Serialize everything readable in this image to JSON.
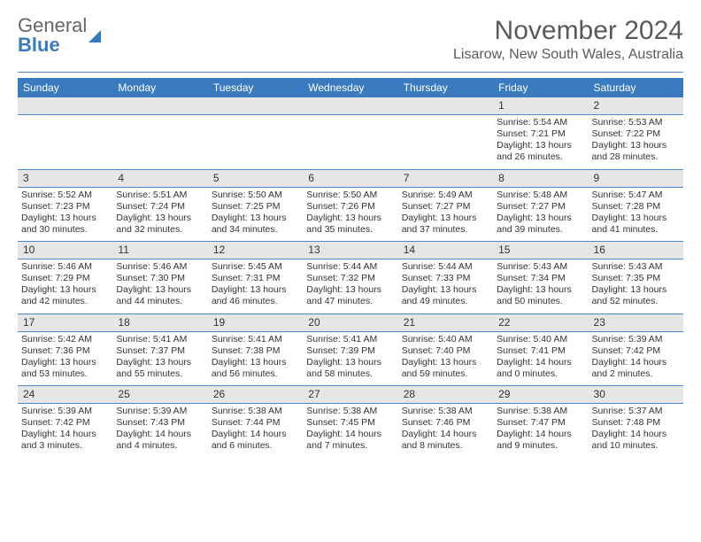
{
  "brand": {
    "line1": "General",
    "line2": "Blue",
    "line1_color": "#666666",
    "line2_color": "#3a7bbf"
  },
  "title": "November 2024",
  "location": "Lisarow, New South Wales, Australia",
  "colors": {
    "header_bg": "#3a7bbf",
    "header_text": "#ffffff",
    "daynum_bg": "#e6e6e6",
    "rule": "#4a8ac9",
    "body_text": "#333333"
  },
  "weekdays": [
    "Sunday",
    "Monday",
    "Tuesday",
    "Wednesday",
    "Thursday",
    "Friday",
    "Saturday"
  ],
  "weeks": [
    [
      null,
      null,
      null,
      null,
      null,
      {
        "n": "1",
        "sr": "5:54 AM",
        "ss": "7:21 PM",
        "dl": "13 hours and 26 minutes."
      },
      {
        "n": "2",
        "sr": "5:53 AM",
        "ss": "7:22 PM",
        "dl": "13 hours and 28 minutes."
      }
    ],
    [
      {
        "n": "3",
        "sr": "5:52 AM",
        "ss": "7:23 PM",
        "dl": "13 hours and 30 minutes."
      },
      {
        "n": "4",
        "sr": "5:51 AM",
        "ss": "7:24 PM",
        "dl": "13 hours and 32 minutes."
      },
      {
        "n": "5",
        "sr": "5:50 AM",
        "ss": "7:25 PM",
        "dl": "13 hours and 34 minutes."
      },
      {
        "n": "6",
        "sr": "5:50 AM",
        "ss": "7:26 PM",
        "dl": "13 hours and 35 minutes."
      },
      {
        "n": "7",
        "sr": "5:49 AM",
        "ss": "7:27 PM",
        "dl": "13 hours and 37 minutes."
      },
      {
        "n": "8",
        "sr": "5:48 AM",
        "ss": "7:27 PM",
        "dl": "13 hours and 39 minutes."
      },
      {
        "n": "9",
        "sr": "5:47 AM",
        "ss": "7:28 PM",
        "dl": "13 hours and 41 minutes."
      }
    ],
    [
      {
        "n": "10",
        "sr": "5:46 AM",
        "ss": "7:29 PM",
        "dl": "13 hours and 42 minutes."
      },
      {
        "n": "11",
        "sr": "5:46 AM",
        "ss": "7:30 PM",
        "dl": "13 hours and 44 minutes."
      },
      {
        "n": "12",
        "sr": "5:45 AM",
        "ss": "7:31 PM",
        "dl": "13 hours and 46 minutes."
      },
      {
        "n": "13",
        "sr": "5:44 AM",
        "ss": "7:32 PM",
        "dl": "13 hours and 47 minutes."
      },
      {
        "n": "14",
        "sr": "5:44 AM",
        "ss": "7:33 PM",
        "dl": "13 hours and 49 minutes."
      },
      {
        "n": "15",
        "sr": "5:43 AM",
        "ss": "7:34 PM",
        "dl": "13 hours and 50 minutes."
      },
      {
        "n": "16",
        "sr": "5:43 AM",
        "ss": "7:35 PM",
        "dl": "13 hours and 52 minutes."
      }
    ],
    [
      {
        "n": "17",
        "sr": "5:42 AM",
        "ss": "7:36 PM",
        "dl": "13 hours and 53 minutes."
      },
      {
        "n": "18",
        "sr": "5:41 AM",
        "ss": "7:37 PM",
        "dl": "13 hours and 55 minutes."
      },
      {
        "n": "19",
        "sr": "5:41 AM",
        "ss": "7:38 PM",
        "dl": "13 hours and 56 minutes."
      },
      {
        "n": "20",
        "sr": "5:41 AM",
        "ss": "7:39 PM",
        "dl": "13 hours and 58 minutes."
      },
      {
        "n": "21",
        "sr": "5:40 AM",
        "ss": "7:40 PM",
        "dl": "13 hours and 59 minutes."
      },
      {
        "n": "22",
        "sr": "5:40 AM",
        "ss": "7:41 PM",
        "dl": "14 hours and 0 minutes."
      },
      {
        "n": "23",
        "sr": "5:39 AM",
        "ss": "7:42 PM",
        "dl": "14 hours and 2 minutes."
      }
    ],
    [
      {
        "n": "24",
        "sr": "5:39 AM",
        "ss": "7:42 PM",
        "dl": "14 hours and 3 minutes."
      },
      {
        "n": "25",
        "sr": "5:39 AM",
        "ss": "7:43 PM",
        "dl": "14 hours and 4 minutes."
      },
      {
        "n": "26",
        "sr": "5:38 AM",
        "ss": "7:44 PM",
        "dl": "14 hours and 6 minutes."
      },
      {
        "n": "27",
        "sr": "5:38 AM",
        "ss": "7:45 PM",
        "dl": "14 hours and 7 minutes."
      },
      {
        "n": "28",
        "sr": "5:38 AM",
        "ss": "7:46 PM",
        "dl": "14 hours and 8 minutes."
      },
      {
        "n": "29",
        "sr": "5:38 AM",
        "ss": "7:47 PM",
        "dl": "14 hours and 9 minutes."
      },
      {
        "n": "30",
        "sr": "5:37 AM",
        "ss": "7:48 PM",
        "dl": "14 hours and 10 minutes."
      }
    ]
  ],
  "labels": {
    "sunrise": "Sunrise: ",
    "sunset": "Sunset: ",
    "daylight": "Daylight: "
  }
}
